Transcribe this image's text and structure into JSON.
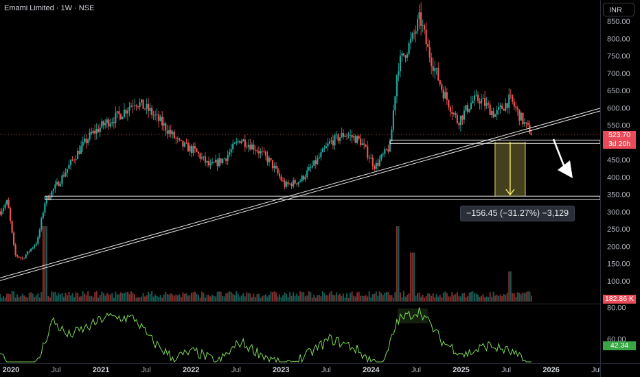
{
  "header": {
    "title": "Emami Limited · 1W · NSE",
    "currency": "INR"
  },
  "price_axis": {
    "ticks": [
      "850.00",
      "800.00",
      "750.00",
      "700.00",
      "650.00",
      "600.00",
      "550.00",
      "450.00",
      "400.00",
      "350.00",
      "300.00",
      "250.00",
      "200.00",
      "150.00",
      "100.00"
    ],
    "last_price": "523.70",
    "countdown": "3d 20h",
    "last_price_color": "#e84a57"
  },
  "volume_axis": {
    "last_volume": "182.86 K"
  },
  "rsi_axis": {
    "ticks": [
      "80.00",
      "60.00"
    ],
    "last_value": "42.34"
  },
  "time_axis": {
    "labels": [
      {
        "text": "2020",
        "bold": true
      },
      {
        "text": "Jul",
        "bold": false
      },
      {
        "text": "2021",
        "bold": true
      },
      {
        "text": "Jul",
        "bold": false
      },
      {
        "text": "2022",
        "bold": true
      },
      {
        "text": "Jul",
        "bold": false
      },
      {
        "text": "2023",
        "bold": true
      },
      {
        "text": "Jul",
        "bold": false
      },
      {
        "text": "2024",
        "bold": true
      },
      {
        "text": "Jul",
        "bold": false
      },
      {
        "text": "2025",
        "bold": true
      },
      {
        "text": "Jul",
        "bold": false
      },
      {
        "text": "2026",
        "bold": true
      },
      {
        "text": "Jul",
        "bold": false
      }
    ]
  },
  "measure": {
    "label": "−156.45 (−31.27%) −3,129"
  },
  "colors": {
    "up": "#26a69a",
    "down": "#ef5350",
    "rsi": "#7ed957",
    "accent_yellow": "#f5e56b"
  },
  "chart_data": {
    "type": "candlestick",
    "interval": "1W",
    "x_range": [
      "2020-01",
      "2026-09"
    ],
    "y_range": [
      40,
      880
    ],
    "price_path": [
      [
        "2020-01",
        300
      ],
      [
        "2020-02",
        330
      ],
      [
        "2020-03",
        175
      ],
      [
        "2020-04",
        165
      ],
      [
        "2020-05",
        190
      ],
      [
        "2020-06",
        215
      ],
      [
        "2020-07",
        330
      ],
      [
        "2020-09",
        390
      ],
      [
        "2020-11",
        460
      ],
      [
        "2021-01",
        520
      ],
      [
        "2021-03",
        555
      ],
      [
        "2021-05",
        580
      ],
      [
        "2021-07",
        620
      ],
      [
        "2021-09",
        590
      ],
      [
        "2021-11",
        545
      ],
      [
        "2022-01",
        495
      ],
      [
        "2022-03",
        475
      ],
      [
        "2022-05",
        430
      ],
      [
        "2022-07",
        455
      ],
      [
        "2022-09",
        510
      ],
      [
        "2022-11",
        485
      ],
      [
        "2023-01",
        445
      ],
      [
        "2023-03",
        375
      ],
      [
        "2023-05",
        390
      ],
      [
        "2023-07",
        440
      ],
      [
        "2023-09",
        500
      ],
      [
        "2023-11",
        525
      ],
      [
        "2024-01",
        505
      ],
      [
        "2024-03",
        430
      ],
      [
        "2024-05",
        490
      ],
      [
        "2024-06",
        720
      ],
      [
        "2024-08",
        800
      ],
      [
        "2024-09",
        860
      ],
      [
        "2024-10",
        770
      ],
      [
        "2024-12",
        650
      ],
      [
        "2025-02",
        560
      ],
      [
        "2025-04",
        620
      ],
      [
        "2025-05",
        625
      ],
      [
        "2025-07",
        580
      ],
      [
        "2025-09",
        625
      ],
      [
        "2025-11",
        550
      ],
      [
        "2025-12",
        523.7
      ]
    ],
    "volume_peaks": [
      {
        "x": "2020-07",
        "value": 1.0
      },
      {
        "x": "2024-06",
        "value": 1.0
      },
      {
        "x": "2024-08",
        "value": 0.65
      },
      {
        "x": "2025-09",
        "value": 0.4
      }
    ],
    "rsi_path": [
      [
        "2020-01",
        52
      ],
      [
        "2020-03",
        30
      ],
      [
        "2020-06",
        45
      ],
      [
        "2020-08",
        72
      ],
      [
        "2020-10",
        62
      ],
      [
        "2021-01",
        68
      ],
      [
        "2021-03",
        74
      ],
      [
        "2021-07",
        73
      ],
      [
        "2021-09",
        60
      ],
      [
        "2021-12",
        48
      ],
      [
        "2022-03",
        52
      ],
      [
        "2022-06",
        45
      ],
      [
        "2022-09",
        58
      ],
      [
        "2022-12",
        50
      ],
      [
        "2023-03",
        42
      ],
      [
        "2023-06",
        50
      ],
      [
        "2023-09",
        60
      ],
      [
        "2023-12",
        55
      ],
      [
        "2024-02",
        48
      ],
      [
        "2024-04",
        42
      ],
      [
        "2024-06",
        72
      ],
      [
        "2024-09",
        78
      ],
      [
        "2024-12",
        58
      ],
      [
        "2025-03",
        50
      ],
      [
        "2025-06",
        56
      ],
      [
        "2025-09",
        52
      ],
      [
        "2025-12",
        42.34
      ]
    ],
    "rsi_range": [
      20,
      90
    ],
    "annotations": [
      {
        "type": "trendline",
        "from": [
          "2020-01",
          105
        ],
        "to": [
          "2026-09",
          595
        ]
      },
      {
        "type": "horizontal",
        "from": "2020-07",
        "to": "2026-09",
        "y": 340
      },
      {
        "type": "horizontal",
        "from": "2024-05",
        "to": "2026-09",
        "y": 502
      },
      {
        "type": "measure",
        "x": "2025-09",
        "from": 502,
        "to": 345
      }
    ]
  }
}
